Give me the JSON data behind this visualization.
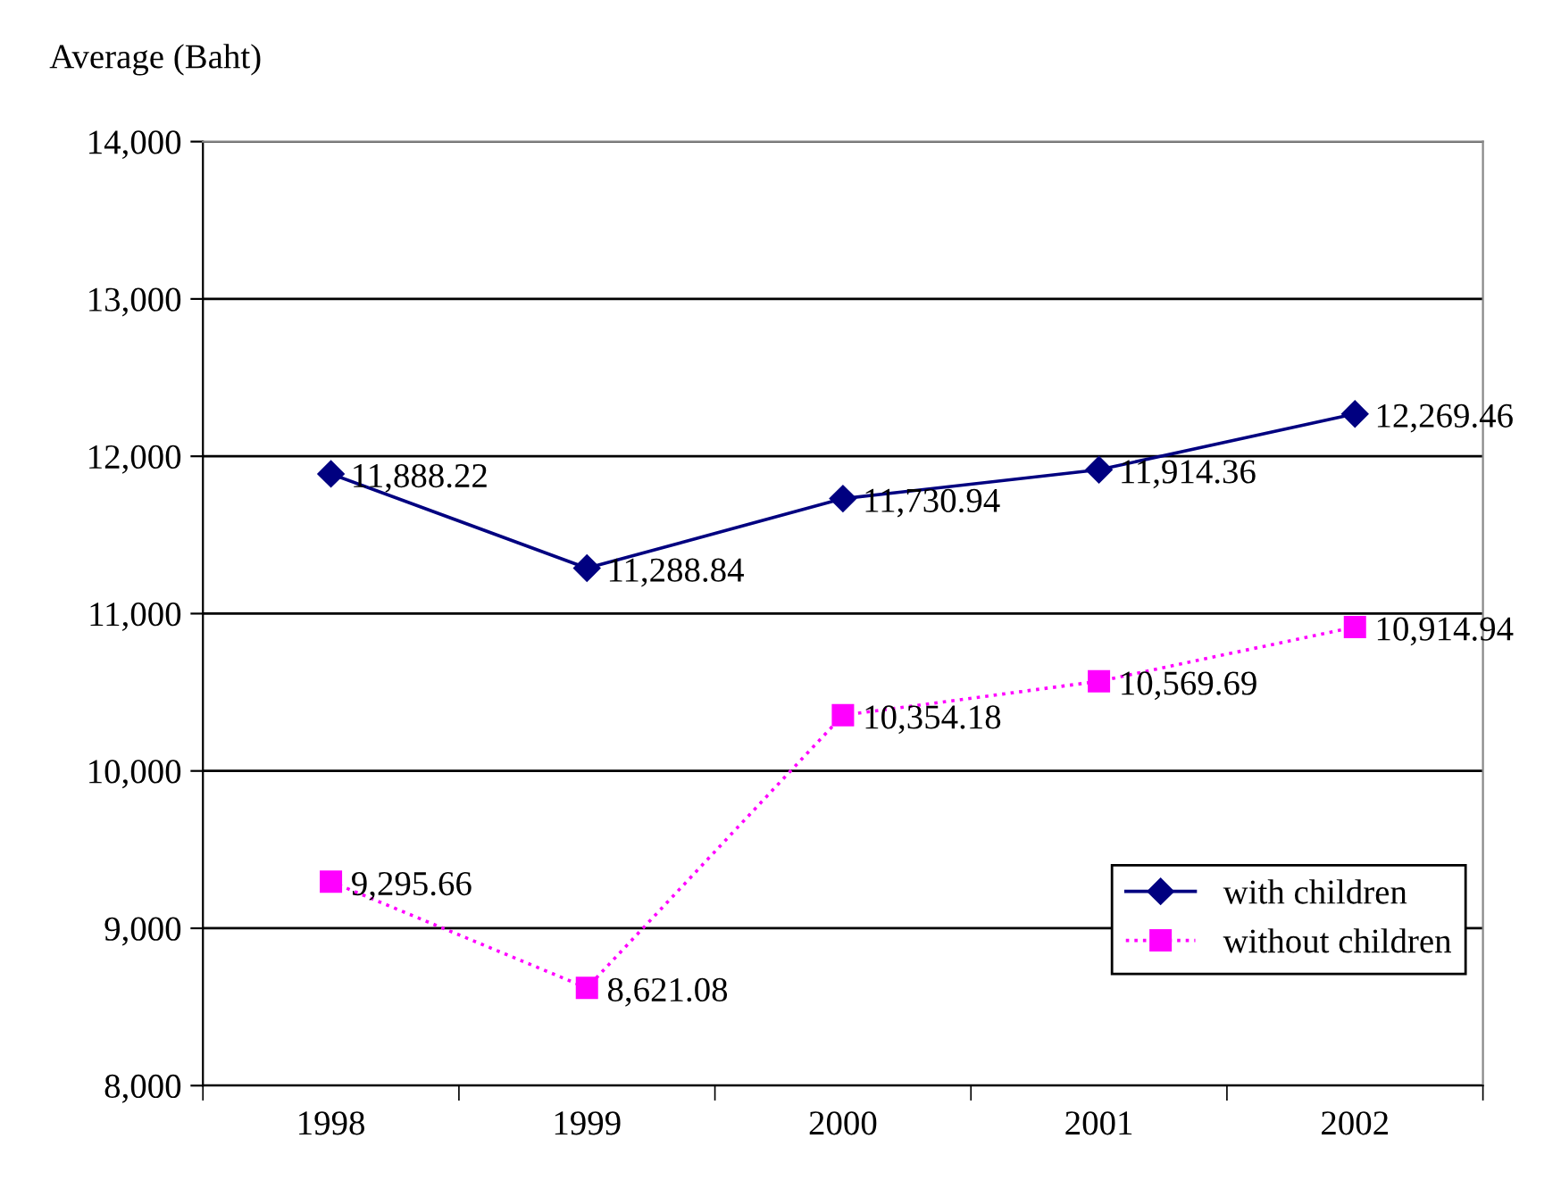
{
  "chart_data": {
    "type": "line",
    "ylabel": "Average (Baht)",
    "categories": [
      "1998",
      "1999",
      "2000",
      "2001",
      "2002"
    ],
    "series": [
      {
        "name": "with children",
        "color": "#000080",
        "values": [
          11888.22,
          11288.84,
          11730.94,
          11914.36,
          12269.46
        ],
        "value_labels": [
          "11,888.22",
          "11,288.84",
          "11,730.94",
          "11,914.36",
          "12,269.46"
        ],
        "marker": "diamond",
        "line_style": "solid"
      },
      {
        "name": "without children",
        "color": "#ff00ff",
        "values": [
          9295.66,
          8621.08,
          10354.18,
          10569.69,
          10914.94
        ],
        "value_labels": [
          "9,295.66",
          "8,621.08",
          "10,354.18",
          "10,569.69",
          "10,914.94"
        ],
        "marker": "square",
        "line_style": "dotted"
      }
    ],
    "ylim": [
      8000,
      14000
    ],
    "yticks": [
      {
        "value": 8000,
        "label": "8,000"
      },
      {
        "value": 9000,
        "label": "9,000"
      },
      {
        "value": 10000,
        "label": "10,000"
      },
      {
        "value": 11000,
        "label": "11,000"
      },
      {
        "value": 12000,
        "label": "12,000"
      },
      {
        "value": 13000,
        "label": "13,000"
      },
      {
        "value": 14000,
        "label": "14,000"
      }
    ],
    "grid": "y",
    "legend": "bottom right"
  }
}
